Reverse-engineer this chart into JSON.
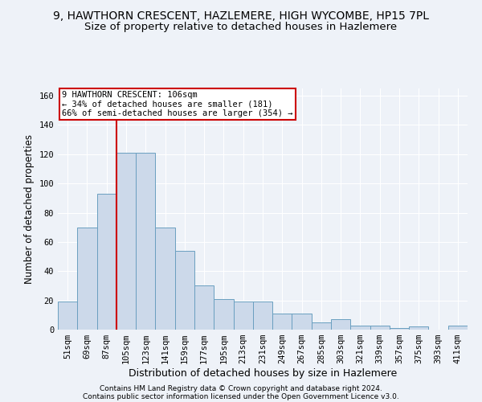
{
  "title": "9, HAWTHORN CRESCENT, HAZLEMERE, HIGH WYCOMBE, HP15 7PL",
  "subtitle": "Size of property relative to detached houses in Hazlemere",
  "xlabel": "Distribution of detached houses by size in Hazlemere",
  "ylabel": "Number of detached properties",
  "bar_color": "#ccd9ea",
  "bar_edge_color": "#6a9fc0",
  "categories": [
    "51sqm",
    "69sqm",
    "87sqm",
    "105sqm",
    "123sqm",
    "141sqm",
    "159sqm",
    "177sqm",
    "195sqm",
    "213sqm",
    "231sqm",
    "249sqm",
    "267sqm",
    "285sqm",
    "303sqm",
    "321sqm",
    "339sqm",
    "357sqm",
    "375sqm",
    "393sqm",
    "411sqm"
  ],
  "values": [
    19,
    70,
    93,
    121,
    121,
    70,
    54,
    30,
    21,
    19,
    19,
    11,
    11,
    5,
    7,
    3,
    3,
    1,
    2,
    0,
    3
  ],
  "ylim": [
    0,
    165
  ],
  "yticks": [
    0,
    20,
    40,
    60,
    80,
    100,
    120,
    140,
    160
  ],
  "property_bin_index": 3,
  "annotation_line1": "9 HAWTHORN CRESCENT: 106sqm",
  "annotation_line2": "← 34% of detached houses are smaller (181)",
  "annotation_line3": "66% of semi-detached houses are larger (354) →",
  "annotation_box_color": "#ffffff",
  "annotation_box_edge": "#cc0000",
  "vline_color": "#cc0000",
  "footnote1": "Contains HM Land Registry data © Crown copyright and database right 2024.",
  "footnote2": "Contains public sector information licensed under the Open Government Licence v3.0.",
  "background_color": "#eef2f8",
  "grid_color": "#ffffff",
  "title_fontsize": 10,
  "subtitle_fontsize": 9.5,
  "xlabel_fontsize": 9,
  "ylabel_fontsize": 8.5,
  "tick_fontsize": 7.5,
  "annot_fontsize": 7.5,
  "footnote_fontsize": 6.5
}
